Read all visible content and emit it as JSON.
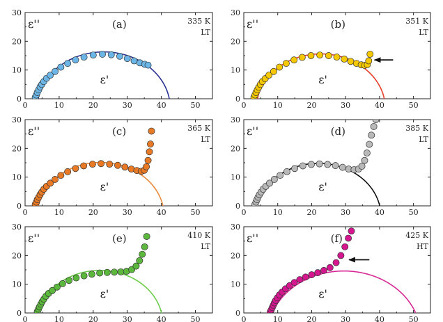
{
  "chart_data": [
    {
      "type": "scatter",
      "panel": "(a)",
      "temperature": "335 K",
      "phase": "LT",
      "xlabel": "ε'",
      "ylabel": "ε''",
      "xlim": [
        0,
        55
      ],
      "ylim": [
        0,
        30
      ],
      "xticks": [
        0,
        10,
        20,
        30,
        40,
        50
      ],
      "yticks": [
        0,
        10,
        20,
        30
      ],
      "marker_color": "#6bb6e6",
      "fit_color": "#2b3593",
      "arrow": null,
      "fit_arc": {
        "center_x": 23.1,
        "center_y": -3.2,
        "radius": 19.5
      },
      "points": {
        "x": [
          3.0,
          3.3,
          3.6,
          4.0,
          4.4,
          4.9,
          5.5,
          6.3,
          7.4,
          8.8,
          10.5,
          12.5,
          14.8,
          17.3,
          20.0,
          22.7,
          25.3,
          27.8,
          30.0,
          32.0,
          33.7,
          35.1,
          36.1
        ],
        "y": [
          0.5,
          1.3,
          2.2,
          3.1,
          4.1,
          5.0,
          6.0,
          7.1,
          8.2,
          9.5,
          11.0,
          12.3,
          13.5,
          14.5,
          15.2,
          15.5,
          15.3,
          14.8,
          14.0,
          13.2,
          12.5,
          12.0,
          11.7
        ]
      }
    },
    {
      "type": "scatter",
      "panel": "(b)",
      "temperature": "351 K",
      "phase": "LT",
      "xlabel": "ε'",
      "ylabel": "ε''",
      "xlim": [
        0,
        55
      ],
      "ylim": [
        0,
        30
      ],
      "xticks": [
        0,
        10,
        20,
        30,
        40,
        50
      ],
      "yticks": [
        0,
        10,
        20,
        30
      ],
      "marker_color": "#f6c800",
      "fit_color": "#e83c2a",
      "arrow": {
        "x_from": 44,
        "x_to": 38.5,
        "y": 13.5
      },
      "fit_arc": {
        "center_x": 22.7,
        "center_y": -3.4,
        "radius": 19.0
      },
      "points": {
        "x": [
          3.0,
          3.3,
          3.6,
          4.0,
          4.4,
          4.9,
          5.5,
          6.3,
          7.4,
          8.8,
          10.5,
          12.5,
          14.8,
          17.2,
          19.8,
          22.4,
          25.0,
          27.4,
          29.6,
          31.5,
          33.2,
          34.6,
          35.6,
          36.4,
          36.8,
          37.2
        ],
        "y": [
          0.5,
          1.3,
          2.2,
          3.1,
          4.0,
          5.0,
          6.0,
          7.0,
          8.2,
          9.5,
          11.0,
          12.3,
          13.5,
          14.4,
          15.0,
          15.2,
          15.0,
          14.5,
          13.8,
          13.0,
          12.3,
          11.8,
          11.6,
          11.9,
          13.2,
          15.5
        ]
      }
    },
    {
      "type": "scatter",
      "panel": "(c)",
      "temperature": "365 K",
      "phase": "LT",
      "xlabel": "ε'",
      "ylabel": "ε''",
      "xlim": [
        0,
        55
      ],
      "ylim": [
        0,
        30
      ],
      "xticks": [
        0,
        10,
        20,
        30,
        40,
        50
      ],
      "yticks": [
        0,
        10,
        20,
        30
      ],
      "marker_color": "#e87a26",
      "fit_color": "#e88a3c",
      "arrow": null,
      "fit_arc": {
        "center_x": 22.2,
        "center_y": -3.5,
        "radius": 18.6
      },
      "points": {
        "x": [
          3.0,
          3.3,
          3.6,
          4.0,
          4.4,
          4.9,
          5.5,
          6.3,
          7.4,
          8.8,
          10.5,
          12.5,
          14.8,
          17.2,
          19.8,
          22.3,
          24.8,
          27.2,
          29.3,
          31.2,
          32.8,
          34.1,
          35.0,
          35.6,
          36.1,
          36.5,
          36.8,
          37.1
        ],
        "y": [
          0.5,
          1.3,
          2.2,
          3.0,
          3.9,
          4.8,
          5.8,
          6.8,
          7.9,
          9.2,
          10.6,
          11.9,
          13.0,
          13.9,
          14.5,
          14.7,
          14.5,
          14.1,
          13.5,
          12.8,
          12.3,
          12.0,
          12.4,
          13.6,
          15.8,
          18.8,
          21.5,
          26.0
        ]
      }
    },
    {
      "type": "scatter",
      "panel": "(d)",
      "temperature": "385 K",
      "phase": "LT",
      "xlabel": "ε'",
      "ylabel": "ε''",
      "xlim": [
        0,
        55
      ],
      "ylim": [
        0,
        30
      ],
      "xticks": [
        0,
        10,
        20,
        30,
        40,
        50
      ],
      "yticks": [
        0,
        10,
        20,
        30
      ],
      "marker_color": "#b8b8b8",
      "fit_color": "#111111",
      "arrow": null,
      "fit_arc": {
        "center_x": 22.0,
        "center_y": -3.6,
        "radius": 18.4
      },
      "points": {
        "x": [
          3.3,
          3.6,
          3.9,
          4.2,
          4.6,
          5.1,
          5.7,
          6.5,
          7.6,
          9.0,
          10.7,
          12.7,
          15.0,
          17.4,
          19.9,
          22.3,
          24.7,
          27.0,
          29.1,
          30.9,
          32.5,
          33.8,
          34.8,
          35.6,
          36.3,
          37.0,
          37.6,
          38.3,
          38.9
        ],
        "y": [
          0.5,
          1.3,
          2.2,
          3.0,
          3.9,
          4.8,
          5.8,
          6.8,
          7.9,
          9.2,
          10.6,
          11.9,
          13.0,
          13.9,
          14.4,
          14.6,
          14.4,
          14.0,
          13.4,
          12.8,
          12.6,
          12.8,
          13.8,
          15.8,
          18.4,
          21.4,
          24.6,
          27.6,
          30.0
        ]
      }
    },
    {
      "type": "scatter",
      "panel": "(e)",
      "temperature": "410 K",
      "phase": "LT",
      "xlabel": "ε'",
      "ylabel": "ε''",
      "xlim": [
        0,
        55
      ],
      "ylim": [
        0,
        30
      ],
      "xticks": [
        0,
        10,
        20,
        30,
        40,
        50
      ],
      "yticks": [
        0,
        10,
        20,
        30
      ],
      "marker_color": "#5cb83c",
      "fit_color": "#6ccc4a",
      "arrow": null,
      "fit_arc": {
        "center_x": 22.0,
        "center_y": -3.6,
        "radius": 18.4
      },
      "points": {
        "x": [
          3.6,
          3.9,
          4.2,
          4.6,
          5.0,
          5.5,
          6.1,
          6.9,
          8.0,
          9.4,
          11.0,
          12.9,
          15.0,
          17.3,
          19.6,
          21.9,
          24.1,
          26.2,
          28.1,
          29.8,
          31.3,
          32.6,
          33.6,
          34.4,
          35.1,
          35.7
        ],
        "y": [
          0.5,
          1.3,
          2.1,
          3.0,
          3.9,
          4.8,
          5.8,
          6.8,
          7.8,
          9.0,
          10.2,
          11.3,
          12.2,
          12.9,
          13.5,
          13.9,
          14.1,
          14.2,
          14.3,
          14.5,
          15.1,
          16.3,
          18.2,
          20.4,
          23.0,
          26.6
        ]
      }
    },
    {
      "type": "scatter",
      "panel": "(f)",
      "temperature": "425 K",
      "phase": "HT",
      "xlabel": "ε'",
      "ylabel": "ε''",
      "xlim": [
        0,
        55
      ],
      "ylim": [
        0,
        30
      ],
      "xticks": [
        0,
        10,
        20,
        30,
        40,
        50
      ],
      "yticks": [
        0,
        10,
        20,
        30
      ],
      "marker_color": "#d4178e",
      "fit_color": "#d82a96",
      "arrow": {
        "x_from": 37,
        "x_to": 31,
        "y": 18.5
      },
      "fit_arc": {
        "center_x": 29.5,
        "center_y": -8.0,
        "radius": 22.6
      },
      "points": {
        "x": [
          7.8,
          8.1,
          8.4,
          8.7,
          9.0,
          9.4,
          9.9,
          10.5,
          11.3,
          12.3,
          13.5,
          14.9,
          16.5,
          18.2,
          20.0,
          21.8,
          23.6,
          25.4,
          27.2,
          28.6,
          29.8,
          30.8,
          31.7
        ],
        "y": [
          0.4,
          1.1,
          1.9,
          2.7,
          3.5,
          4.4,
          5.3,
          6.3,
          7.3,
          8.4,
          9.5,
          10.6,
          11.6,
          12.5,
          13.3,
          14.0,
          14.8,
          15.8,
          17.5,
          20.0,
          23.0,
          26.0,
          28.5
        ]
      }
    }
  ]
}
